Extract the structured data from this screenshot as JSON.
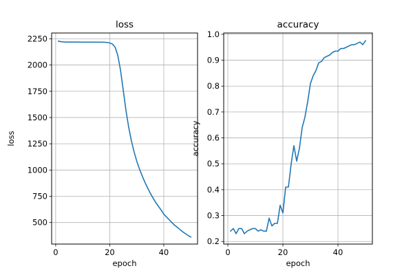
{
  "chart_data": [
    {
      "type": "line",
      "title": "loss",
      "xlabel": "epoch",
      "ylabel": "loss",
      "xlim": [
        -1.5,
        52.5
      ],
      "ylim": [
        295,
        2305
      ],
      "xticks": [
        0,
        20,
        40
      ],
      "yticks": [
        500,
        750,
        1000,
        1250,
        1500,
        1750,
        2000,
        2250
      ],
      "grid": true,
      "color": "#1f77b4",
      "series": [
        {
          "x": [
            1,
            2,
            3,
            4,
            5,
            6,
            7,
            8,
            9,
            10,
            11,
            12,
            13,
            14,
            15,
            16,
            17,
            18,
            19,
            20,
            21,
            22,
            23,
            24,
            25,
            26,
            27,
            28,
            29,
            30,
            31,
            32,
            33,
            34,
            35,
            36,
            37,
            38,
            39,
            40,
            41,
            42,
            43,
            44,
            45,
            46,
            47,
            48,
            49,
            50
          ],
          "values": [
            2228,
            2222,
            2220,
            2219,
            2219,
            2219,
            2219,
            2219,
            2218,
            2218,
            2218,
            2218,
            2218,
            2218,
            2218,
            2218,
            2218,
            2217,
            2215,
            2210,
            2200,
            2170,
            2090,
            1950,
            1760,
            1570,
            1410,
            1280,
            1175,
            1085,
            1010,
            945,
            885,
            830,
            780,
            735,
            692,
            655,
            620,
            580,
            553,
            527,
            500,
            475,
            455,
            433,
            412,
            394,
            377,
            362
          ]
        }
      ]
    },
    {
      "type": "line",
      "title": "accuracy",
      "xlabel": "epoch",
      "ylabel": "accuracy",
      "xlim": [
        -1.5,
        52.5
      ],
      "ylim": [
        0.19,
        1.005
      ],
      "xticks": [
        0,
        20,
        40
      ],
      "yticks": [
        0.2,
        0.3,
        0.4,
        0.5,
        0.6,
        0.7,
        0.8,
        0.9,
        1.0
      ],
      "ytick_labels": [
        "0.2",
        "0.3",
        "0.4",
        "0.5",
        "0.6",
        "0.7",
        "0.8",
        "0.9",
        "1.0"
      ],
      "grid": true,
      "color": "#1f77b4",
      "series": [
        {
          "x": [
            1,
            2,
            3,
            4,
            5,
            6,
            7,
            8,
            9,
            10,
            11,
            12,
            13,
            14,
            15,
            16,
            17,
            18,
            19,
            20,
            21,
            22,
            23,
            24,
            25,
            26,
            27,
            28,
            29,
            30,
            31,
            32,
            33,
            34,
            35,
            36,
            37,
            38,
            39,
            40,
            41,
            42,
            43,
            44,
            45,
            46,
            47,
            48,
            49,
            50
          ],
          "values": [
            0.24,
            0.25,
            0.23,
            0.25,
            0.25,
            0.23,
            0.24,
            0.245,
            0.25,
            0.25,
            0.24,
            0.245,
            0.24,
            0.24,
            0.29,
            0.26,
            0.27,
            0.27,
            0.34,
            0.31,
            0.41,
            0.41,
            0.5,
            0.57,
            0.51,
            0.56,
            0.64,
            0.68,
            0.74,
            0.81,
            0.84,
            0.86,
            0.89,
            0.895,
            0.91,
            0.915,
            0.92,
            0.93,
            0.935,
            0.935,
            0.945,
            0.945,
            0.95,
            0.955,
            0.96,
            0.96,
            0.965,
            0.97,
            0.96,
            0.975
          ]
        }
      ]
    }
  ]
}
